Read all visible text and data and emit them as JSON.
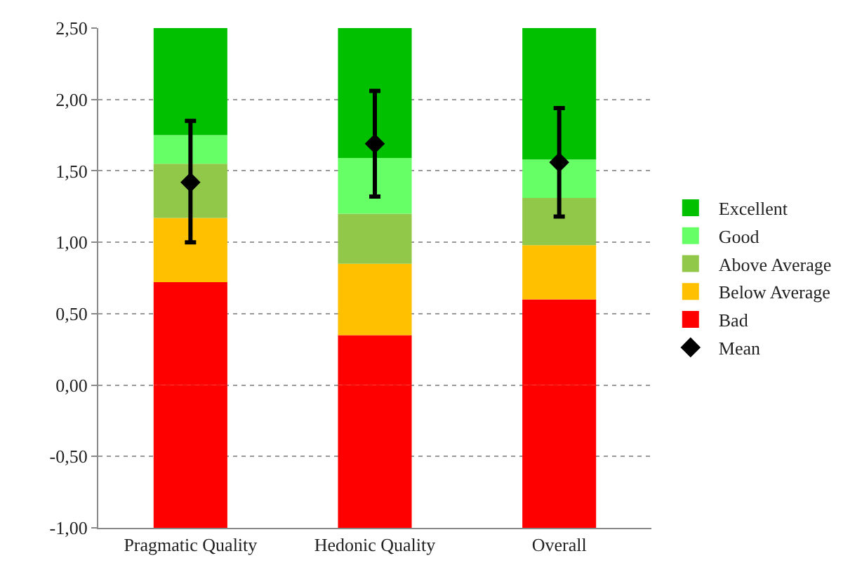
{
  "chart_data": {
    "type": "bar",
    "stacked": true,
    "categories": [
      "Pragmatic Quality",
      "Hedonic Quality",
      "Overall"
    ],
    "series": [
      {
        "color": "#ff0000",
        "values": [
          -1,
          -1,
          -1
        ]
      },
      {
        "name": "Bad",
        "color": "#ff0000",
        "values": [
          0.72,
          0.35,
          0.6
        ]
      },
      {
        "name": "Below Average",
        "color": "#ffc000",
        "values": [
          0.45,
          0.5,
          0.38
        ]
      },
      {
        "name": "Above Average",
        "color": "#92c84a",
        "values": [
          0.38,
          0.35,
          0.33
        ]
      },
      {
        "name": "Good",
        "color": "#66ff66",
        "values": [
          0.2,
          0.39,
          0.27
        ]
      },
      {
        "name": "Excellent",
        "color": "#00c000",
        "values": [
          0.75,
          0.91,
          0.92
        ]
      },
      {
        "name": "Mean",
        "type": "scatter",
        "marker": "diamond",
        "color": "#000000",
        "x": [
          "Pragmatic Quality",
          "Hedonic Quality",
          "Overall"
        ],
        "values": [
          1.42,
          1.69,
          1.56
        ],
        "errors": [
          [
            1.0,
            1.85
          ],
          [
            1.32,
            2.06
          ],
          [
            1.18,
            1.94
          ]
        ]
      }
    ],
    "ylim": [
      -1,
      2.5
    ],
    "yticks": [
      {
        "value": -1,
        "label": "-1,00"
      },
      {
        "value": -0.5,
        "label": "-0,50"
      },
      {
        "value": 0,
        "label": "0,00"
      },
      {
        "value": 0.5,
        "label": "0,50"
      },
      {
        "value": 1,
        "label": "1,00"
      },
      {
        "value": 1.5,
        "label": "1,50"
      },
      {
        "value": 2,
        "label": "2,00"
      },
      {
        "value": 2.5,
        "label": "2,50"
      }
    ],
    "grid": "y",
    "legend": "right"
  }
}
